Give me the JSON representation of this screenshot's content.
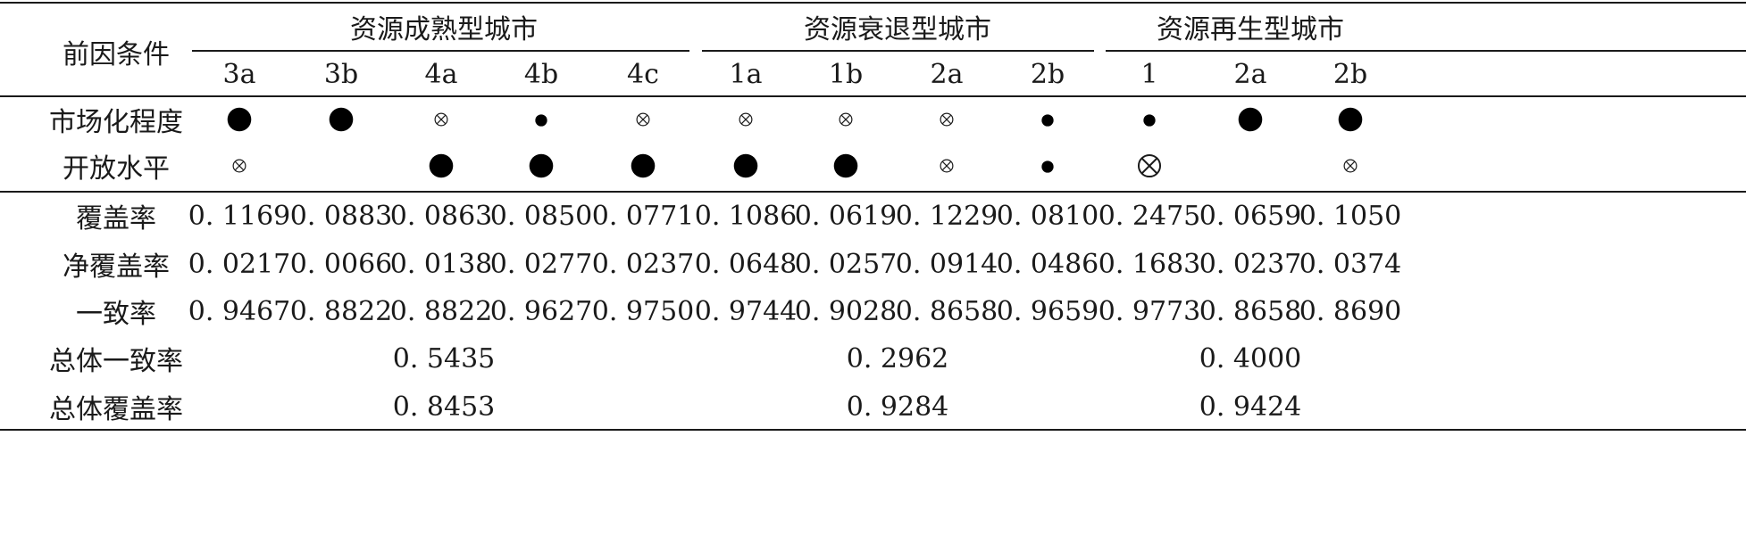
{
  "header": {
    "corner_label": "前因条件",
    "groups": [
      {
        "label": "资源成熟型城市",
        "configs": [
          "3a",
          "3b",
          "4a",
          "4b",
          "4c"
        ]
      },
      {
        "label": "资源衰退型城市",
        "configs": [
          "1a",
          "1b",
          "2a",
          "2b"
        ]
      },
      {
        "label": "资源再生型城市",
        "configs": [
          "1",
          "2a",
          "2b"
        ]
      }
    ]
  },
  "conditions": [
    {
      "label": "市场化程度",
      "symbols": [
        "core-present",
        "core-present",
        "peripheral-absent",
        "peripheral-present",
        "peripheral-absent",
        "peripheral-absent",
        "peripheral-absent",
        "peripheral-absent",
        "peripheral-present",
        "peripheral-present",
        "core-present",
        "core-present"
      ]
    },
    {
      "label": "开放水平",
      "symbols": [
        "peripheral-absent",
        "",
        "core-present",
        "core-present",
        "core-present",
        "core-present",
        "core-present",
        "peripheral-absent",
        "peripheral-present",
        "core-absent",
        "",
        "peripheral-absent"
      ]
    }
  ],
  "metrics": [
    {
      "label": "覆盖率",
      "values": [
        "0. 1169",
        "0. 0883",
        "0. 0863",
        "0. 0850",
        "0. 0771",
        "0. 1086",
        "0. 0619",
        "0. 1229",
        "0. 0810",
        "0. 2475",
        "0. 0659",
        "0. 1050"
      ]
    },
    {
      "label": "净覆盖率",
      "values": [
        "0. 0217",
        "0. 0066",
        "0. 0138",
        "0. 0277",
        "0. 0237",
        "0. 0648",
        "0. 0257",
        "0. 0914",
        "0. 0486",
        "0. 1683",
        "0. 0237",
        "0. 0374"
      ]
    },
    {
      "label": "一致率",
      "values": [
        "0. 9467",
        "0. 8822",
        "0. 8822",
        "0. 9627",
        "0. 9750",
        "0. 9744",
        "0. 9028",
        "0. 8658",
        "0. 9659",
        "0. 9773",
        "0. 8658",
        "0. 8690"
      ]
    }
  ],
  "overall": [
    {
      "label": "总体一致率",
      "values": [
        "0. 5435",
        "0. 2962",
        "0. 4000"
      ]
    },
    {
      "label": "总体覆盖率",
      "values": [
        "0. 8453",
        "0. 9284",
        "0. 9424"
      ]
    }
  ]
}
